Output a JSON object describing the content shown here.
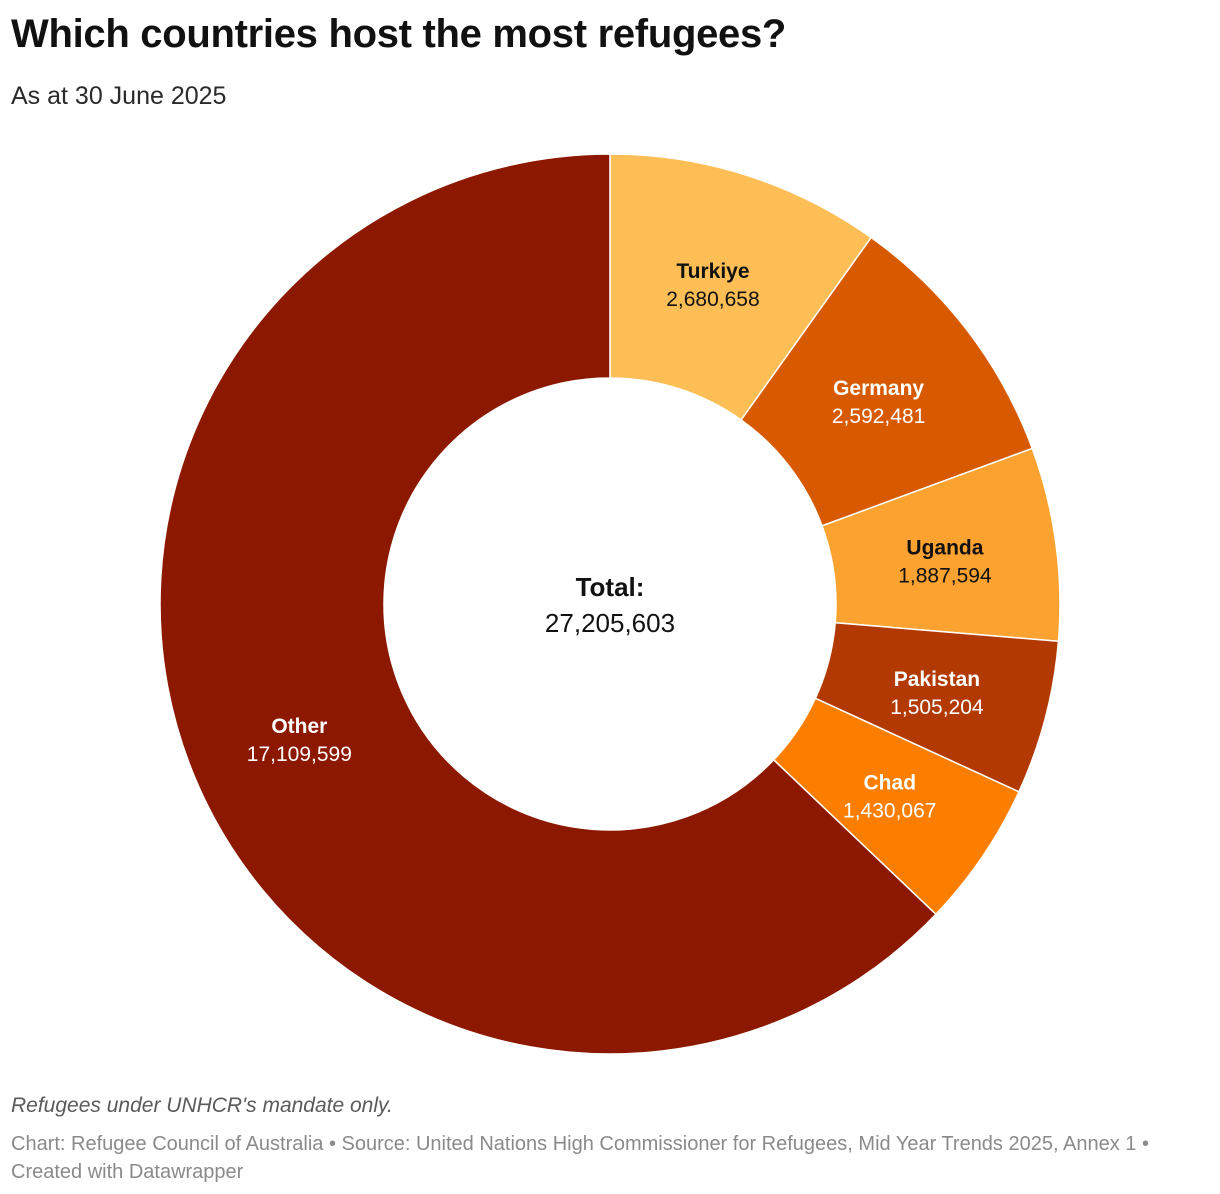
{
  "header": {
    "title": "Which countries host the most refugees?",
    "subtitle": "As at 30 June 2025"
  },
  "chart_data": {
    "type": "pie",
    "variant": "donut",
    "title": "Which countries host the most refugees?",
    "subtitle": "As at 30 June 2025",
    "center_label": {
      "label": "Total:",
      "value": "27,205,603"
    },
    "slices": [
      {
        "label": "Turkiye",
        "value": 2680658,
        "display": "2,680,658",
        "color": "#fdbe56",
        "text_color": "#111111"
      },
      {
        "label": "Germany",
        "value": 2592481,
        "display": "2,592,481",
        "color": "#d75a00",
        "text_color": "#ffffff"
      },
      {
        "label": "Uganda",
        "value": 1887594,
        "display": "1,887,594",
        "color": "#fca231",
        "text_color": "#111111"
      },
      {
        "label": "Pakistan",
        "value": 1505204,
        "display": "1,505,204",
        "color": "#b23a02",
        "text_color": "#ffffff"
      },
      {
        "label": "Chad",
        "value": 1430067,
        "display": "1,430,067",
        "color": "#fc7e00",
        "text_color": "#ffffff"
      },
      {
        "label": "Other",
        "value": 17109599,
        "display": "17,109,599",
        "color": "#8c1800",
        "text_color": "#ffffff"
      }
    ],
    "start": "top",
    "direction": "clockwise"
  },
  "notes": {
    "note": "Refugees under UNHCR's mandate only.",
    "footer": "Chart: Refugee Council of Australia • Source: United Nations High Commissioner for Refugees, Mid Year Trends 2025, Annex 1  • Created with Datawrapper"
  }
}
